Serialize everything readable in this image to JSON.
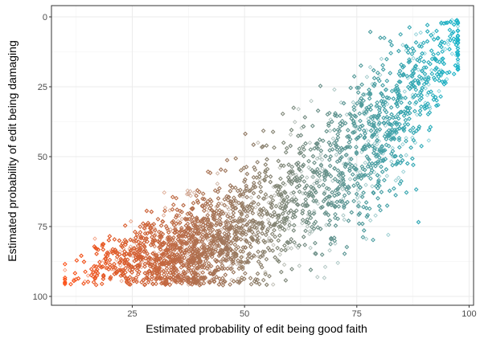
{
  "chart_data": {
    "type": "scatter",
    "title": "",
    "xlabel": "Estimated probability of edit being good faith",
    "ylabel": "Estimated probability of edit being damaging",
    "xlim": [
      7,
      101
    ],
    "ylim": [
      0,
      100
    ],
    "y_reversed": true,
    "x_ticks": [
      25,
      50,
      75,
      100
    ],
    "x_tick_labels": [
      "25",
      "50",
      "75",
      "100"
    ],
    "y_ticks": [
      0,
      25,
      50,
      75,
      100
    ],
    "y_tick_labels": [
      "0",
      "25",
      "50",
      "75",
      "100"
    ],
    "grid": true,
    "legend": "none",
    "marker": "open-diamond",
    "point_count_estimate": 12000,
    "color_gradient": {
      "variable": "good_faith",
      "low_value": 10,
      "high_value": 97,
      "low_color": "#fc4f14",
      "high_color": "#1eb4c8"
    },
    "density_profile": {
      "description": "mean damaging probability as a function of good-faith probability",
      "x": [
        10,
        20,
        30,
        40,
        50,
        60,
        70,
        80,
        90,
        97
      ],
      "mean_y": [
        93,
        89,
        86,
        82,
        76,
        68,
        56,
        44,
        24,
        9
      ],
      "spread": [
        4,
        5,
        7,
        9,
        11,
        12,
        13,
        14,
        12,
        7
      ]
    },
    "representative_points": [
      {
        "x": 12,
        "y": 94
      },
      {
        "x": 17,
        "y": 92
      },
      {
        "x": 20,
        "y": 84
      },
      {
        "x": 22,
        "y": 88
      },
      {
        "x": 27,
        "y": 79
      },
      {
        "x": 30,
        "y": 86
      },
      {
        "x": 32,
        "y": 71
      },
      {
        "x": 35,
        "y": 92
      },
      {
        "x": 38,
        "y": 64
      },
      {
        "x": 41,
        "y": 82
      },
      {
        "x": 44,
        "y": 56
      },
      {
        "x": 47,
        "y": 90
      },
      {
        "x": 50,
        "y": 68
      },
      {
        "x": 53,
        "y": 45
      },
      {
        "x": 56,
        "y": 80
      },
      {
        "x": 59,
        "y": 60
      },
      {
        "x": 62,
        "y": 33
      },
      {
        "x": 64,
        "y": 75
      },
      {
        "x": 67,
        "y": 49
      },
      {
        "x": 70,
        "y": 26
      },
      {
        "x": 72,
        "y": 65
      },
      {
        "x": 75,
        "y": 40
      },
      {
        "x": 78,
        "y": 18
      },
      {
        "x": 80,
        "y": 57
      },
      {
        "x": 82,
        "y": 78
      },
      {
        "x": 84,
        "y": 30
      },
      {
        "x": 86,
        "y": 12
      },
      {
        "x": 88,
        "y": 45
      },
      {
        "x": 90,
        "y": 22
      },
      {
        "x": 92,
        "y": 6
      },
      {
        "x": 94,
        "y": 15
      },
      {
        "x": 96,
        "y": 2
      }
    ]
  }
}
